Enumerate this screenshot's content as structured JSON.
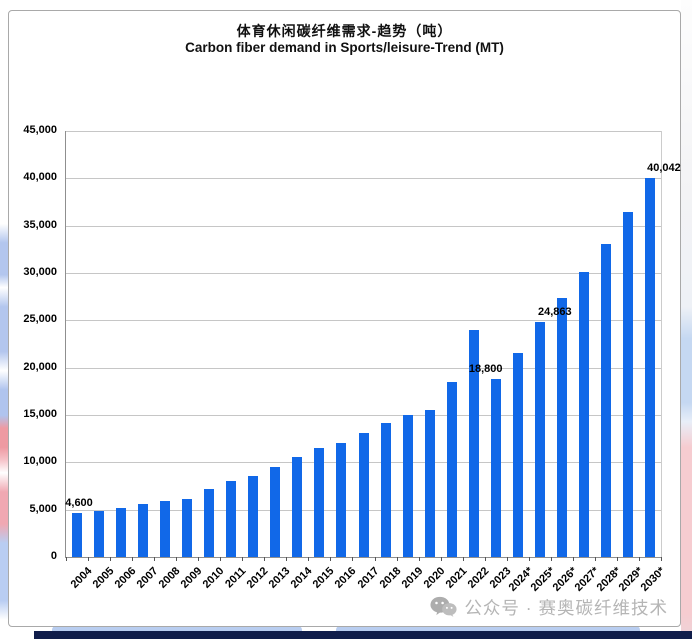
{
  "page": {
    "watermark": "公众号 · 赛奥碳纤维技术"
  },
  "chart_data": {
    "type": "bar",
    "title_zh": "体育休闲碳纤维需求-趋势（吨）",
    "title_en": "Carbon fiber demand in Sports/leisure-Trend (MT)",
    "categories": [
      "2004",
      "2005",
      "2006",
      "2007",
      "2008",
      "2009",
      "2010",
      "2011",
      "2012",
      "2013",
      "2014",
      "2015",
      "2016",
      "2017",
      "2018",
      "2019",
      "2020",
      "2021",
      "2022",
      "2023",
      "2024*",
      "2025*",
      "2026*",
      "2027*",
      "2028*",
      "2029*",
      "2030*"
    ],
    "values": [
      4600,
      4900,
      5200,
      5600,
      5900,
      6100,
      7200,
      8000,
      8600,
      9500,
      10600,
      11500,
      12000,
      13100,
      14200,
      15000,
      15500,
      18500,
      24000,
      18800,
      21600,
      24863,
      27349,
      30084,
      33093,
      36402,
      40042
    ],
    "data_labels": [
      {
        "index": 0,
        "text": "4,600",
        "dx": 2
      },
      {
        "index": 19,
        "text": "18,800",
        "dx": -10
      },
      {
        "index": 21,
        "text": "24,863",
        "dx": 15
      },
      {
        "index": 26,
        "text": "40,042",
        "dx": 14
      }
    ],
    "ylabel_ticks": [
      "0",
      "5,000",
      "10,000",
      "15,000",
      "20,000",
      "25,000",
      "30,000",
      "35,000",
      "40,000",
      "45,000"
    ],
    "ylim": [
      0,
      45000
    ],
    "ytick_step": 5000,
    "grid": true,
    "legend": "none",
    "bar_color": "#1168E8",
    "xlabel": "",
    "ylabel": ""
  }
}
